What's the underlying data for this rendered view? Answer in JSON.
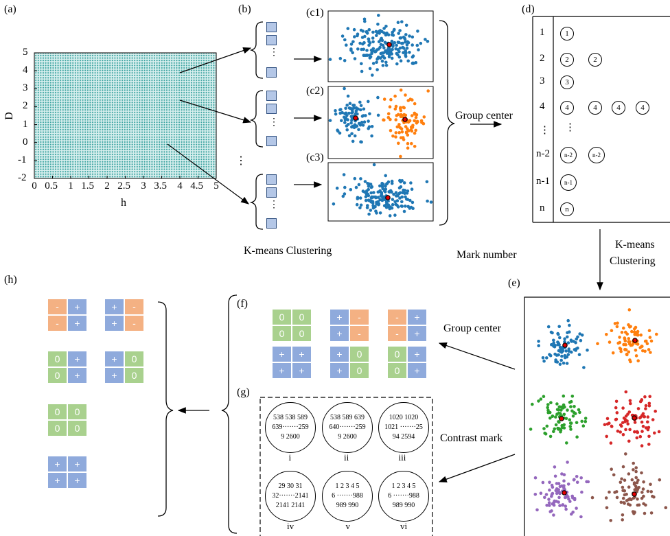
{
  "panels": {
    "a": "(a)",
    "b": "(b)",
    "c1": "(c1)",
    "c2": "(c2)",
    "c3": "(c3)",
    "d": "(d)",
    "e": "(e)",
    "f": "(f)",
    "g": "(g)",
    "h": "(h)"
  },
  "plot_a": {
    "ylabel": "D",
    "xlabel": "h",
    "yticks": [
      "5",
      "4",
      "3",
      "2",
      "1",
      "0",
      "-1",
      "-2"
    ],
    "xticks": [
      "0",
      "0.5",
      "1",
      "1.5",
      "2",
      "2.5",
      "3",
      "3.5",
      "4",
      "4.5",
      "5"
    ]
  },
  "captions": {
    "kmeans1": "K-means Clustering",
    "group_center1": "Group center",
    "mark_number": "Mark number",
    "kmeans2_line1": "K-means",
    "kmeans2_line2": "Clustering",
    "group_center2": "Group center",
    "contrast_mark": "Contrast mark"
  },
  "dots": {
    "vdots": "⋮",
    "gdots": "⋮"
  },
  "table_d": {
    "rows": [
      {
        "label": "1",
        "marks": [
          "1"
        ]
      },
      {
        "label": "2",
        "marks": [
          "2",
          "2"
        ]
      },
      {
        "label": "3",
        "marks": [
          "3"
        ]
      },
      {
        "label": "4",
        "marks": [
          "4",
          "4",
          "4",
          "4"
        ]
      },
      {
        "label": "⋮",
        "marks": [
          "⋮"
        ]
      },
      {
        "label": "n-2",
        "marks": [
          "n-2",
          "n-2"
        ]
      },
      {
        "label": "n-1",
        "marks": [
          "n-1"
        ]
      },
      {
        "label": "n",
        "marks": [
          "n"
        ]
      }
    ]
  },
  "tiles_f": [
    [
      "0",
      "0",
      "0",
      "0"
    ],
    [
      "+",
      "-",
      "+",
      "-"
    ],
    [
      "-",
      "+",
      "-",
      "+"
    ],
    [
      "+",
      "+",
      "+",
      "+"
    ],
    [
      "+",
      "0",
      "+",
      "0"
    ],
    [
      "0",
      "+",
      "0",
      "+"
    ]
  ],
  "tiles_h": [
    [
      "-",
      "+",
      "-",
      "+"
    ],
    [
      "+",
      "-",
      "+",
      "-"
    ],
    [
      "0",
      "+",
      "0",
      "+"
    ],
    [
      "+",
      "0",
      "+",
      "0"
    ],
    [
      "0",
      "0",
      "0",
      "0"
    ],
    [
      "+",
      "+",
      "+",
      "+"
    ]
  ],
  "circles_g": [
    {
      "l1": "538 538 589",
      "l2": "639·······259",
      "l3": "9 2600",
      "roman": "i"
    },
    {
      "l1": "538 589 639",
      "l2": "640·······259",
      "l3": "9 2600",
      "roman": "ii"
    },
    {
      "l1": "1020 1020",
      "l2": "1021 ·······25",
      "l3": "94 2594",
      "roman": "iii"
    },
    {
      "l1": "29 30 31",
      "l2": "32·······2141",
      "l3": "2141 2141",
      "roman": "iv"
    },
    {
      "l1": "1 2 3 4 5",
      "l2": "6 ·······988",
      "l3": "989 990",
      "roman": "v"
    },
    {
      "l1": "1 2 3 4 5",
      "l2": "6 ·······988",
      "l3": "989 990",
      "roman": "vi"
    }
  ],
  "colors": {
    "teal": "#3aa3a0",
    "blue": "#1f77b4",
    "orange": "#ff7f0e",
    "green": "#2ca02c",
    "red": "#d62728",
    "purple": "#9467bd",
    "brown": "#8c564b",
    "center": "#e60000"
  }
}
